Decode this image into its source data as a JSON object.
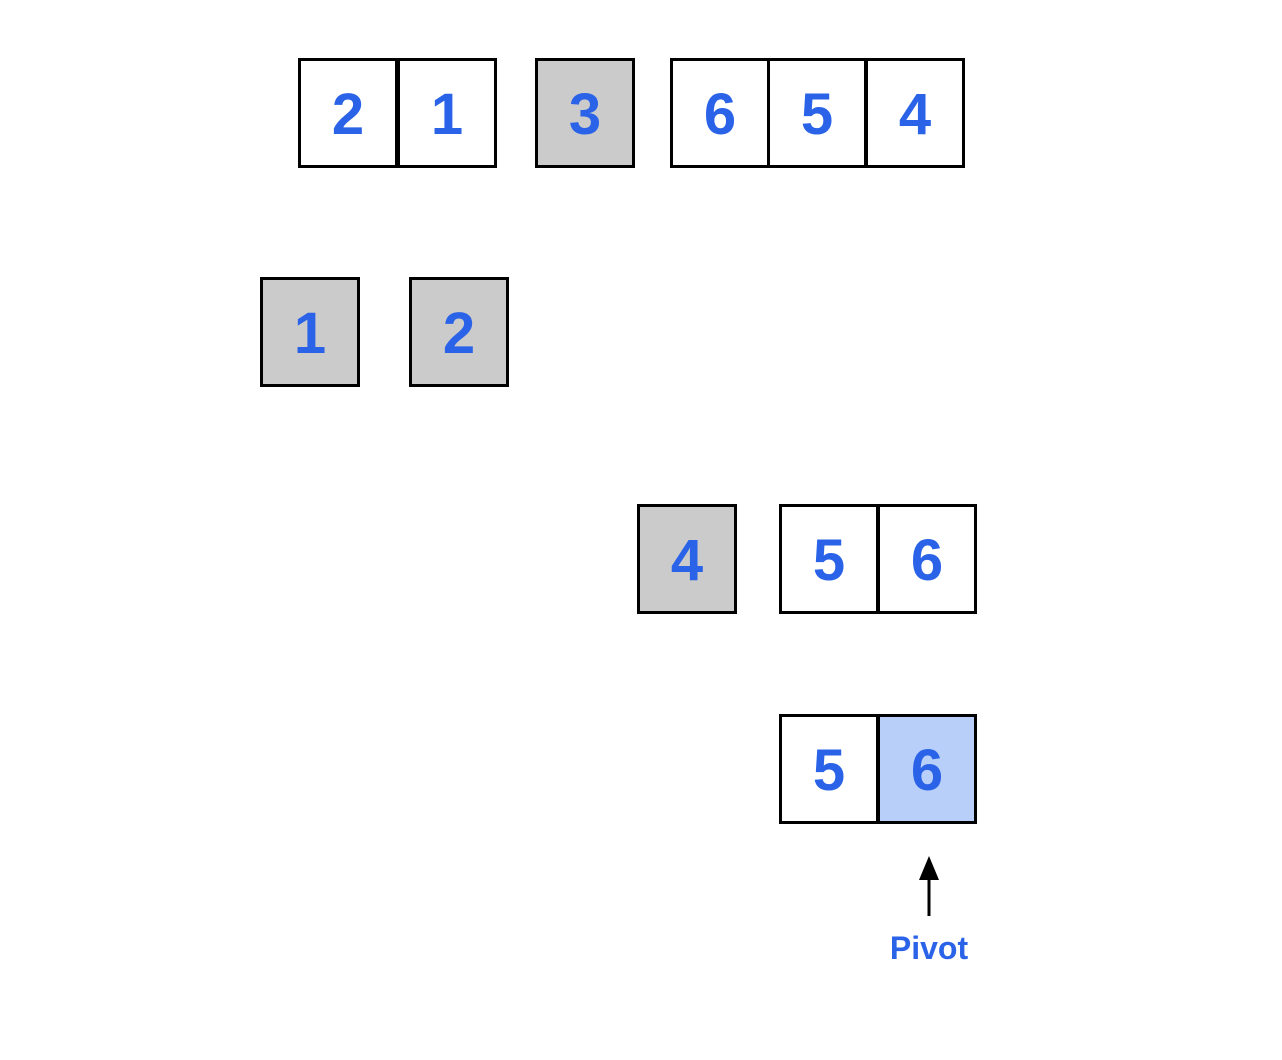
{
  "colors": {
    "number_text": "#2A63E8",
    "cell_border": "#000000",
    "cell_plain": "#FFFFFF",
    "cell_sorted": "#CBCBCB",
    "cell_pivot": "#B8CFFA",
    "arrow": "#000000"
  },
  "rows": [
    {
      "name": "level-1",
      "cells": [
        {
          "value": "2",
          "state": "plain"
        },
        {
          "value": "1",
          "state": "plain"
        },
        {
          "value": "3",
          "state": "sorted"
        },
        {
          "value": "6",
          "state": "plain"
        },
        {
          "value": "5",
          "state": "plain"
        },
        {
          "value": "4",
          "state": "plain"
        }
      ]
    },
    {
      "name": "level-2",
      "cells": [
        {
          "value": "1",
          "state": "sorted"
        },
        {
          "value": "2",
          "state": "sorted"
        }
      ]
    },
    {
      "name": "level-3",
      "cells": [
        {
          "value": "4",
          "state": "sorted"
        },
        {
          "value": "5",
          "state": "plain"
        },
        {
          "value": "6",
          "state": "plain"
        }
      ]
    },
    {
      "name": "level-4",
      "cells": [
        {
          "value": "5",
          "state": "plain"
        },
        {
          "value": "6",
          "state": "pivot"
        }
      ]
    }
  ],
  "pivot_label": "Pivot"
}
